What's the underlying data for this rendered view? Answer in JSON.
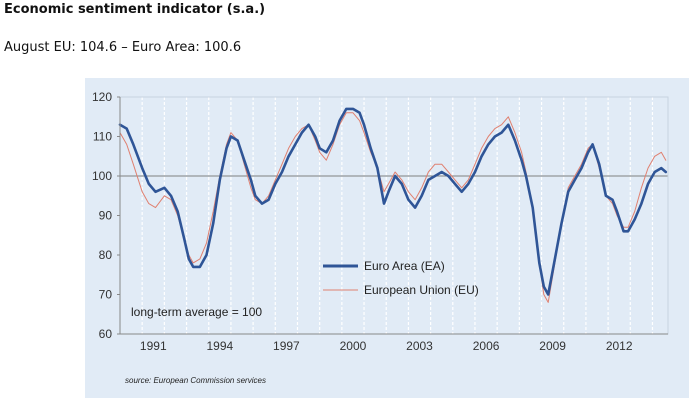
{
  "header": {
    "title": "Economic sentiment indicator (s.a.)",
    "subtitle": "August EU: 104.6 – Euro Area: 100.6"
  },
  "chart_data": {
    "type": "line",
    "x_tick_labels": [
      "1991",
      "1994",
      "1997",
      "2000",
      "2003",
      "2006",
      "2009",
      "2012"
    ],
    "y_ticks": [
      60,
      70,
      80,
      90,
      100,
      110,
      120
    ],
    "ylim": [
      60,
      120
    ],
    "xlim": [
      1990.0,
      2014.7
    ],
    "reference_value": 100,
    "annotation": "long-term average = 100",
    "source": "source: European Commission services",
    "legend_position": "center-right",
    "series": [
      {
        "name": "Euro Area (EA)",
        "color": "#2f5597",
        "points": [
          [
            1990.0,
            113
          ],
          [
            1990.3,
            112
          ],
          [
            1990.6,
            108
          ],
          [
            1991.0,
            102
          ],
          [
            1991.3,
            98
          ],
          [
            1991.6,
            96
          ],
          [
            1992.0,
            97
          ],
          [
            1992.3,
            95
          ],
          [
            1992.6,
            91
          ],
          [
            1992.9,
            84
          ],
          [
            1993.1,
            79
          ],
          [
            1993.3,
            77
          ],
          [
            1993.6,
            77
          ],
          [
            1993.9,
            80
          ],
          [
            1994.2,
            88
          ],
          [
            1994.5,
            99
          ],
          [
            1994.8,
            107
          ],
          [
            1995.0,
            110
          ],
          [
            1995.3,
            109
          ],
          [
            1995.6,
            104
          ],
          [
            1995.9,
            99
          ],
          [
            1996.1,
            95
          ],
          [
            1996.4,
            93
          ],
          [
            1996.7,
            94
          ],
          [
            1997.0,
            98
          ],
          [
            1997.3,
            101
          ],
          [
            1997.6,
            105
          ],
          [
            1997.9,
            108
          ],
          [
            1998.2,
            111
          ],
          [
            1998.5,
            113
          ],
          [
            1998.8,
            110
          ],
          [
            1999.0,
            107
          ],
          [
            1999.3,
            106
          ],
          [
            1999.6,
            109
          ],
          [
            1999.9,
            114
          ],
          [
            2000.2,
            117
          ],
          [
            2000.5,
            117
          ],
          [
            2000.8,
            116
          ],
          [
            2001.0,
            113
          ],
          [
            2001.3,
            107
          ],
          [
            2001.6,
            102
          ],
          [
            2001.9,
            93
          ],
          [
            2002.1,
            96
          ],
          [
            2002.4,
            100
          ],
          [
            2002.7,
            98
          ],
          [
            2003.0,
            94
          ],
          [
            2003.3,
            92
          ],
          [
            2003.6,
            95
          ],
          [
            2003.9,
            99
          ],
          [
            2004.2,
            100
          ],
          [
            2004.5,
            101
          ],
          [
            2004.8,
            100
          ],
          [
            2005.1,
            98
          ],
          [
            2005.4,
            96
          ],
          [
            2005.7,
            98
          ],
          [
            2006.0,
            101
          ],
          [
            2006.3,
            105
          ],
          [
            2006.6,
            108
          ],
          [
            2006.9,
            110
          ],
          [
            2007.2,
            111
          ],
          [
            2007.5,
            113
          ],
          [
            2007.8,
            109
          ],
          [
            2008.1,
            104
          ],
          [
            2008.3,
            100
          ],
          [
            2008.6,
            92
          ],
          [
            2008.9,
            78
          ],
          [
            2009.1,
            72
          ],
          [
            2009.3,
            70
          ],
          [
            2009.6,
            79
          ],
          [
            2009.9,
            88
          ],
          [
            2010.2,
            96
          ],
          [
            2010.5,
            99
          ],
          [
            2010.8,
            102
          ],
          [
            2011.1,
            106
          ],
          [
            2011.3,
            108
          ],
          [
            2011.6,
            103
          ],
          [
            2011.9,
            95
          ],
          [
            2012.2,
            94
          ],
          [
            2012.4,
            91
          ],
          [
            2012.7,
            86
          ],
          [
            2012.9,
            86
          ],
          [
            2013.2,
            89
          ],
          [
            2013.5,
            93
          ],
          [
            2013.8,
            98
          ],
          [
            2014.1,
            101
          ],
          [
            2014.4,
            102
          ],
          [
            2014.6,
            101
          ]
        ]
      },
      {
        "name": "European Union (EU)",
        "color": "#e08070",
        "points": [
          [
            1990.0,
            111
          ],
          [
            1990.3,
            108
          ],
          [
            1990.6,
            103
          ],
          [
            1991.0,
            96
          ],
          [
            1991.3,
            93
          ],
          [
            1991.6,
            92
          ],
          [
            1992.0,
            95
          ],
          [
            1992.3,
            94
          ],
          [
            1992.6,
            90
          ],
          [
            1992.9,
            84
          ],
          [
            1993.1,
            80
          ],
          [
            1993.3,
            78
          ],
          [
            1993.6,
            79
          ],
          [
            1993.9,
            83
          ],
          [
            1994.2,
            91
          ],
          [
            1994.5,
            100
          ],
          [
            1994.8,
            108
          ],
          [
            1995.0,
            111
          ],
          [
            1995.3,
            109
          ],
          [
            1995.6,
            103
          ],
          [
            1995.9,
            97
          ],
          [
            1996.1,
            94
          ],
          [
            1996.4,
            93
          ],
          [
            1996.7,
            95
          ],
          [
            1997.0,
            99
          ],
          [
            1997.3,
            103
          ],
          [
            1997.6,
            107
          ],
          [
            1997.9,
            110
          ],
          [
            1998.2,
            112
          ],
          [
            1998.5,
            113
          ],
          [
            1998.8,
            109
          ],
          [
            1999.0,
            106
          ],
          [
            1999.3,
            104
          ],
          [
            1999.6,
            108
          ],
          [
            1999.9,
            113
          ],
          [
            2000.2,
            116
          ],
          [
            2000.5,
            116
          ],
          [
            2000.8,
            114
          ],
          [
            2001.0,
            111
          ],
          [
            2001.3,
            106
          ],
          [
            2001.6,
            102
          ],
          [
            2001.9,
            96
          ],
          [
            2002.1,
            98
          ],
          [
            2002.4,
            101
          ],
          [
            2002.7,
            99
          ],
          [
            2003.0,
            96
          ],
          [
            2003.3,
            94
          ],
          [
            2003.6,
            97
          ],
          [
            2003.9,
            101
          ],
          [
            2004.2,
            103
          ],
          [
            2004.5,
            103
          ],
          [
            2004.8,
            101
          ],
          [
            2005.1,
            99
          ],
          [
            2005.4,
            97
          ],
          [
            2005.7,
            99
          ],
          [
            2006.0,
            103
          ],
          [
            2006.3,
            107
          ],
          [
            2006.6,
            110
          ],
          [
            2006.9,
            112
          ],
          [
            2007.2,
            113
          ],
          [
            2007.5,
            115
          ],
          [
            2007.8,
            111
          ],
          [
            2008.1,
            106
          ],
          [
            2008.3,
            101
          ],
          [
            2008.6,
            92
          ],
          [
            2008.9,
            78
          ],
          [
            2009.1,
            70
          ],
          [
            2009.3,
            68
          ],
          [
            2009.6,
            78
          ],
          [
            2009.9,
            88
          ],
          [
            2010.2,
            97
          ],
          [
            2010.5,
            100
          ],
          [
            2010.8,
            103
          ],
          [
            2011.1,
            107
          ],
          [
            2011.3,
            108
          ],
          [
            2011.6,
            102
          ],
          [
            2011.9,
            95
          ],
          [
            2012.2,
            93
          ],
          [
            2012.4,
            90
          ],
          [
            2012.7,
            87
          ],
          [
            2012.9,
            87
          ],
          [
            2013.2,
            91
          ],
          [
            2013.5,
            97
          ],
          [
            2013.8,
            102
          ],
          [
            2014.1,
            105
          ],
          [
            2014.4,
            106
          ],
          [
            2014.6,
            104
          ]
        ]
      }
    ]
  }
}
